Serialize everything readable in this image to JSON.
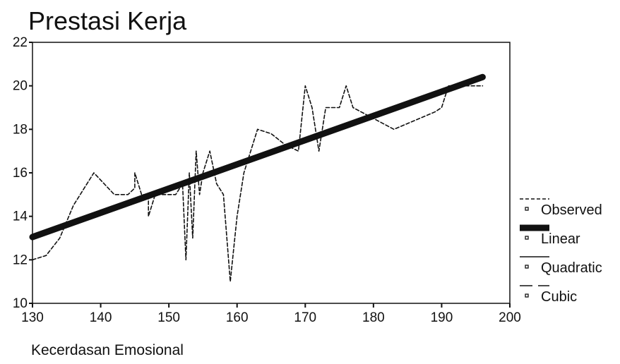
{
  "chart_data": {
    "type": "line",
    "title": "Prestasi Kerja",
    "xlabel": "Kecerdasan Emosional",
    "ylabel": "",
    "xlim": [
      130,
      200
    ],
    "ylim": [
      10,
      22
    ],
    "xticks": [
      130,
      140,
      150,
      160,
      170,
      180,
      190,
      200
    ],
    "yticks": [
      10,
      12,
      14,
      16,
      18,
      20,
      22
    ],
    "grid": false,
    "legend_position": "right",
    "series": [
      {
        "name": "Observed",
        "style": "dashed",
        "color": "#111111",
        "x": [
          130,
          132,
          134,
          136,
          139,
          142,
          144,
          145,
          145,
          146,
          147,
          147,
          148,
          150,
          151,
          152,
          152.5,
          153,
          153.5,
          154,
          154.5,
          155,
          156,
          157,
          158,
          159,
          160,
          161,
          163,
          165,
          167,
          169,
          170,
          171,
          172,
          173,
          175,
          176,
          177,
          180,
          183,
          186,
          189,
          190,
          191,
          193,
          196
        ],
        "y": [
          12,
          12.2,
          13,
          14.5,
          16,
          15,
          15,
          15.3,
          16,
          15,
          15,
          14,
          15,
          15,
          15,
          15.5,
          12,
          16,
          13,
          17,
          15,
          16,
          17,
          15.5,
          15,
          11,
          14,
          16,
          18,
          17.8,
          17.3,
          17,
          20,
          19,
          17,
          19,
          19,
          20,
          19,
          18.5,
          18,
          18.4,
          18.8,
          19,
          20,
          20,
          20
        ]
      },
      {
        "name": "Linear",
        "style": "thick",
        "color": "#111111",
        "x": [
          130,
          196
        ],
        "y": [
          13.05,
          20.4
        ]
      },
      {
        "name": "Quadratic",
        "style": "solid",
        "color": "#111111",
        "x": [
          130,
          196
        ],
        "y": [
          13.0,
          20.35
        ]
      },
      {
        "name": "Cubic",
        "style": "longdash",
        "color": "#111111",
        "x": [
          130,
          196
        ],
        "y": [
          13.1,
          20.45
        ]
      }
    ],
    "legend": [
      "Observed",
      "Linear",
      "Quadratic",
      "Cubic"
    ]
  }
}
